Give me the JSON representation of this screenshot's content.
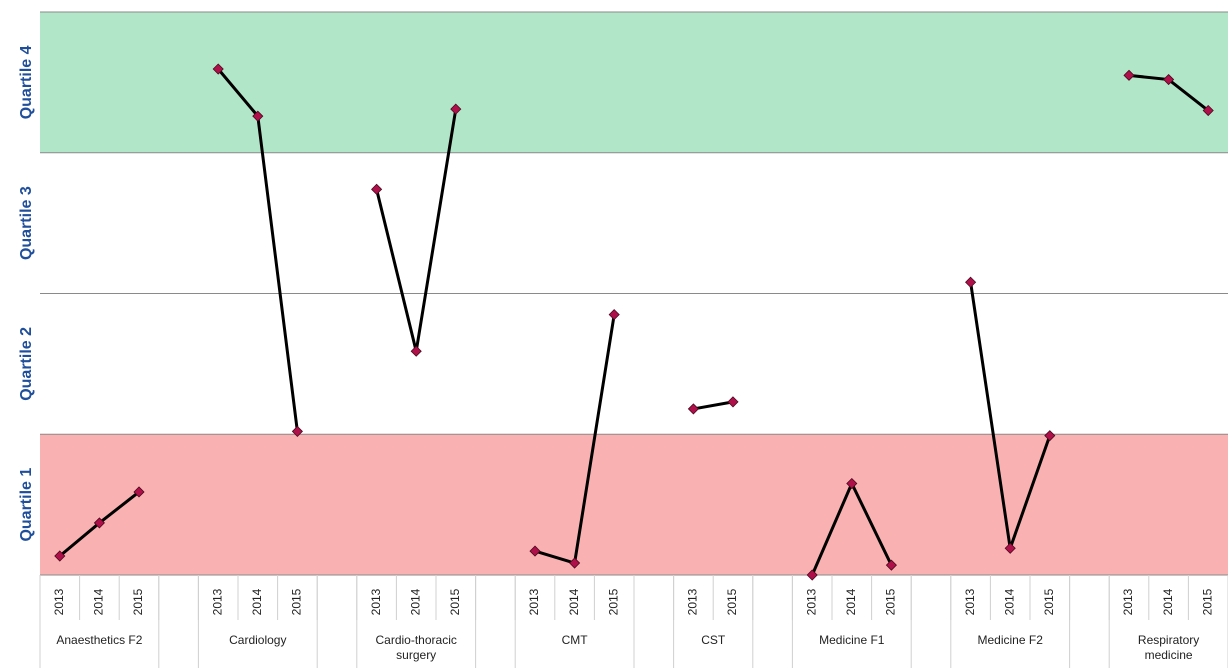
{
  "chart_data": {
    "type": "line",
    "categories": [
      "2013",
      "2014",
      "2015",
      null,
      "2013",
      "2014",
      "2015",
      null,
      "2013",
      "2014",
      "2015",
      null,
      "2013",
      "2014",
      "2015",
      null,
      "2013",
      "2015",
      null,
      "2013",
      "2014",
      "2015",
      null,
      "2013",
      "2014",
      "2015",
      null,
      "2013",
      "2014",
      "2015"
    ],
    "groups": [
      {
        "name": "Anaesthetics F2",
        "span": 3
      },
      {
        "name": "Cardiology",
        "span": 3
      },
      {
        "name": "Cardio-thoracic surgery",
        "span": 3
      },
      {
        "name": "CMT",
        "span": 3
      },
      {
        "name": "CST",
        "span": 2
      },
      {
        "name": "Medicine F1",
        "span": 3
      },
      {
        "name": "Medicine F2",
        "span": 3
      },
      {
        "name": "Respiratory medicine",
        "span": 3
      }
    ],
    "series": [
      {
        "color": "#000000",
        "marker_color": "#b0104a",
        "values": [
          0.135,
          0.37,
          0.59,
          null,
          3.595,
          3.26,
          1.02,
          null,
          2.74,
          1.59,
          3.31,
          null,
          0.17,
          0.085,
          1.85,
          null,
          1.18,
          1.23,
          null,
          0.0,
          0.65,
          0.07,
          null,
          2.08,
          0.19,
          0.99,
          null,
          3.55,
          3.52,
          3.3
        ]
      }
    ],
    "ylim": [
      0,
      4
    ],
    "yticks": [
      {
        "value": 0.5,
        "label": "Quartile 1"
      },
      {
        "value": 1.5,
        "label": "Quartile 2"
      },
      {
        "value": 2.5,
        "label": "Quartile 3"
      },
      {
        "value": 3.5,
        "label": "Quartile 4"
      }
    ],
    "y_grid": [
      0,
      1,
      2,
      3,
      4
    ],
    "bands": [
      {
        "from": 0,
        "to": 1,
        "color": "#f9b1b1"
      },
      {
        "from": 3,
        "to": 4,
        "color": "#b2e6c9"
      }
    ]
  }
}
